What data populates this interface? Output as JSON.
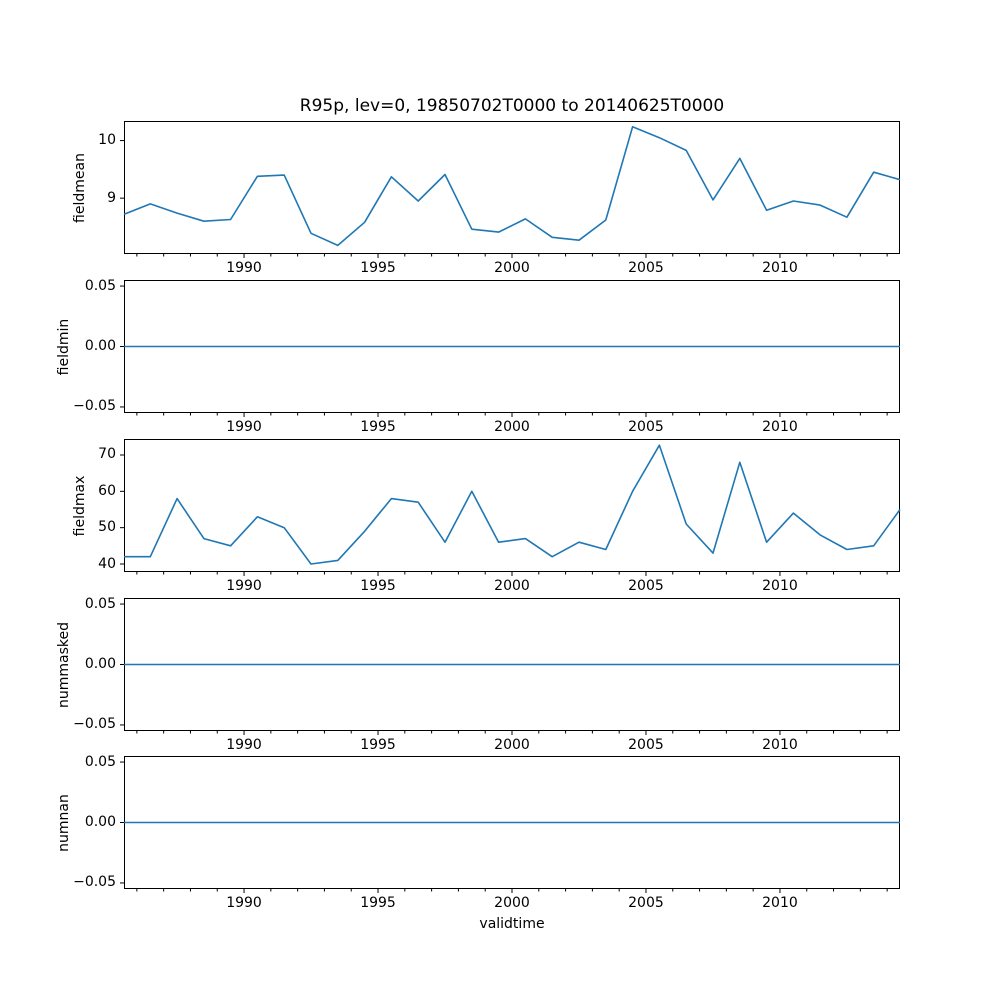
{
  "figure": {
    "title": "R95p, lev=0, 19850702T0000 to 20140625T0000",
    "xlabel": "validtime",
    "line_color": "#1f77b4",
    "axis_color": "#000000",
    "background": "#ffffff"
  },
  "chart_data": {
    "type": "line",
    "title": "R95p, lev=0, 19850702T0000 to 20140625T0000",
    "xlabel": "validtime",
    "x_years": [
      1985,
      1986,
      1987,
      1988,
      1989,
      1990,
      1991,
      1992,
      1993,
      1994,
      1995,
      1996,
      1997,
      1998,
      1999,
      2000,
      2001,
      2002,
      2003,
      2004,
      2005,
      2006,
      2007,
      2008,
      2009,
      2010,
      2011,
      2012,
      2013,
      2014
    ],
    "x_note": "data points fall at mid-year; axis spans 1985-07-02 to 2014-06-25",
    "xlim": [
      1985.52,
      2014.48
    ],
    "xticks": {
      "values": [
        1990,
        1995,
        2000,
        2005,
        2010
      ],
      "labels": [
        "1990",
        "1995",
        "2000",
        "2005",
        "2010"
      ]
    },
    "minor_xtick_step_years": 1,
    "grid": false,
    "legend": "none",
    "panels": [
      {
        "ylabel": "fieldmean",
        "ylim": [
          8.03,
          10.34
        ],
        "yticks": {
          "values": [
            9,
            10
          ],
          "labels": [
            "9",
            "10"
          ]
        },
        "values": [
          8.72,
          8.9,
          8.74,
          8.6,
          8.63,
          9.38,
          9.4,
          8.39,
          8.18,
          8.58,
          9.37,
          8.95,
          9.41,
          8.46,
          8.41,
          8.64,
          8.32,
          8.27,
          8.62,
          10.24,
          10.05,
          9.83,
          8.97,
          9.69,
          8.79,
          8.95,
          8.88,
          8.67,
          9.45,
          9.32
        ]
      },
      {
        "ylabel": "fieldmin",
        "ylim": [
          -0.055,
          0.055
        ],
        "yticks": {
          "values": [
            -0.05,
            0.0,
            0.05
          ],
          "labels": [
            "−0.05",
            "0.00",
            "0.05"
          ]
        },
        "constant_value": 0
      },
      {
        "ylabel": "fieldmax",
        "ylim": [
          37.8,
          74.4
        ],
        "yticks": {
          "values": [
            40,
            50,
            60,
            70
          ],
          "labels": [
            "40",
            "50",
            "60",
            "70"
          ]
        },
        "values": [
          42,
          42,
          58,
          47,
          45,
          53,
          50,
          40,
          41,
          49,
          58,
          57,
          46,
          60,
          46,
          47,
          42,
          46,
          44,
          60,
          72.7,
          51,
          43,
          68,
          46,
          54,
          48,
          44,
          45,
          55
        ]
      },
      {
        "ylabel": "nummasked",
        "ylim": [
          -0.055,
          0.055
        ],
        "yticks": {
          "values": [
            -0.05,
            0.0,
            0.05
          ],
          "labels": [
            "−0.05",
            "0.00",
            "0.05"
          ]
        },
        "constant_value": 0
      },
      {
        "ylabel": "numnan",
        "ylim": [
          -0.055,
          0.055
        ],
        "yticks": {
          "values": [
            -0.05,
            0.0,
            0.05
          ],
          "labels": [
            "−0.05",
            "0.00",
            "0.05"
          ]
        },
        "constant_value": 0
      }
    ]
  }
}
